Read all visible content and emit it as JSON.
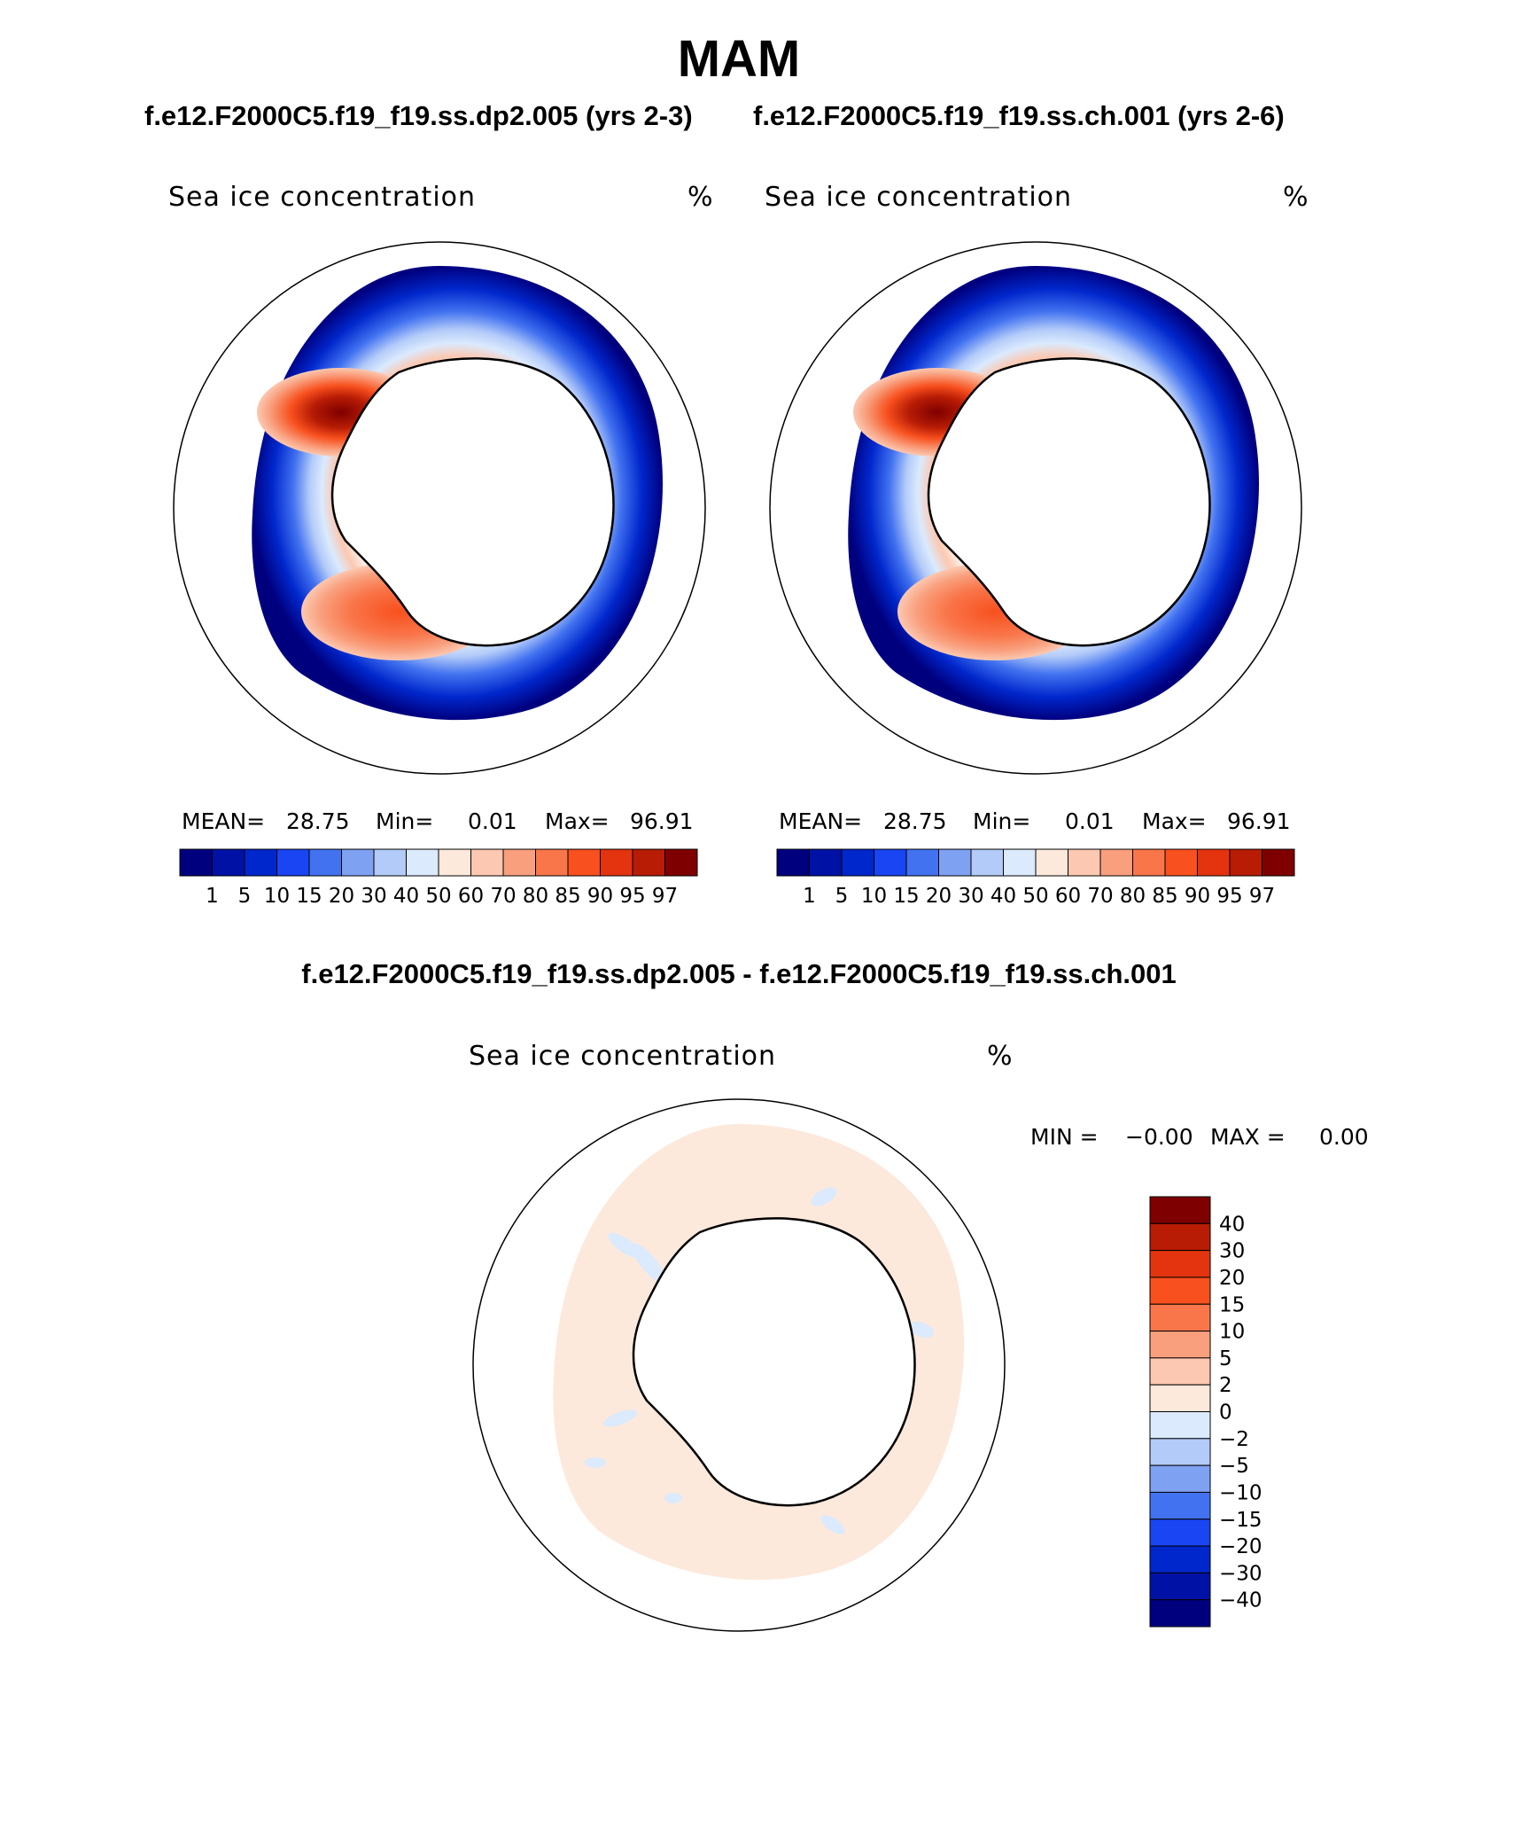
{
  "page_title": "MAM",
  "panels": [
    {
      "subtitle": "f.e12.F2000C5.f19_f19.ss.dp2.005 (yrs 2-3)",
      "field": "Sea ice concentration",
      "units": "%",
      "mean_label": "MEAN=",
      "mean_value": "28.75",
      "min_label": "Min=",
      "min_value": "0.01",
      "max_label": "Max=",
      "max_value": "96.91"
    },
    {
      "subtitle": "f.e12.F2000C5.f19_f19.ss.ch.001 (yrs 2-6)",
      "field": "Sea ice concentration",
      "units": "%",
      "mean_label": "MEAN=",
      "mean_value": "28.75",
      "min_label": "Min=",
      "min_value": "0.01",
      "max_label": "Max=",
      "max_value": "96.91"
    }
  ],
  "diff_panel": {
    "subtitle": "f.e12.F2000C5.f19_f19.ss.dp2.005 - f.e12.F2000C5.f19_f19.ss.ch.001",
    "field": "Sea ice concentration",
    "units": "%",
    "min_label": "MIN =",
    "min_value": "−0.00",
    "max_label": "MAX =",
    "max_value": "0.00"
  },
  "colorbar_main": {
    "colors": [
      "#00007f",
      "#0012a6",
      "#0027cc",
      "#1a45f2",
      "#4272f0",
      "#7fa1f2",
      "#b3cbf9",
      "#dbeafd",
      "#fde9db",
      "#fcc8b1",
      "#f99f7d",
      "#f9764a",
      "#f8501e",
      "#e3340f",
      "#b81c05",
      "#7f0000"
    ],
    "tick_labels": [
      "1",
      "5",
      "10",
      "15",
      "20",
      "30",
      "40",
      "50",
      "60",
      "70",
      "80",
      "85",
      "90",
      "95",
      "97"
    ]
  },
  "colorbar_diff": {
    "colors_top_to_bottom": [
      "#7f0000",
      "#b81c05",
      "#e3340f",
      "#f8501e",
      "#f9764a",
      "#f99f7d",
      "#fcc8b1",
      "#fde9db",
      "#dbeafd",
      "#b3cbf9",
      "#7fa1f2",
      "#4272f0",
      "#1a45f2",
      "#0027cc",
      "#0012a6",
      "#00007f"
    ],
    "tick_labels_top_to_bottom": [
      "40",
      "30",
      "20",
      "15",
      "10",
      "5",
      "2",
      "0",
      "−2",
      "−5",
      "−10",
      "−15",
      "−20",
      "−30",
      "−40"
    ]
  }
}
